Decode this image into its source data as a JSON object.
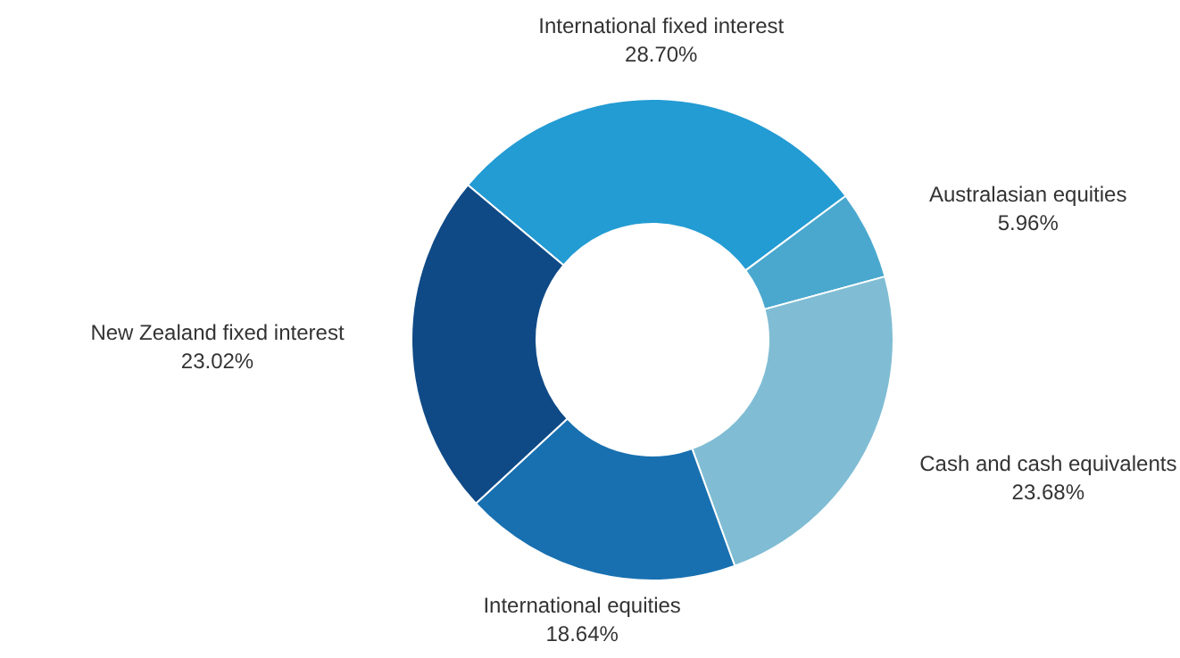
{
  "chart_data": {
    "type": "donut",
    "categories": [
      "International fixed interest",
      "Australasian equities",
      "Cash and cash equivalents",
      "International equities",
      "New Zealand fixed interest"
    ],
    "values": [
      28.7,
      5.96,
      23.68,
      18.64,
      23.02
    ],
    "value_labels": [
      "28.70%",
      "5.96%",
      "23.68%",
      "18.64%",
      "23.02%"
    ],
    "colors": [
      "#239bd3",
      "#4aa8cf",
      "#80bdd4",
      "#1870b0",
      "#0f4a86"
    ]
  }
}
